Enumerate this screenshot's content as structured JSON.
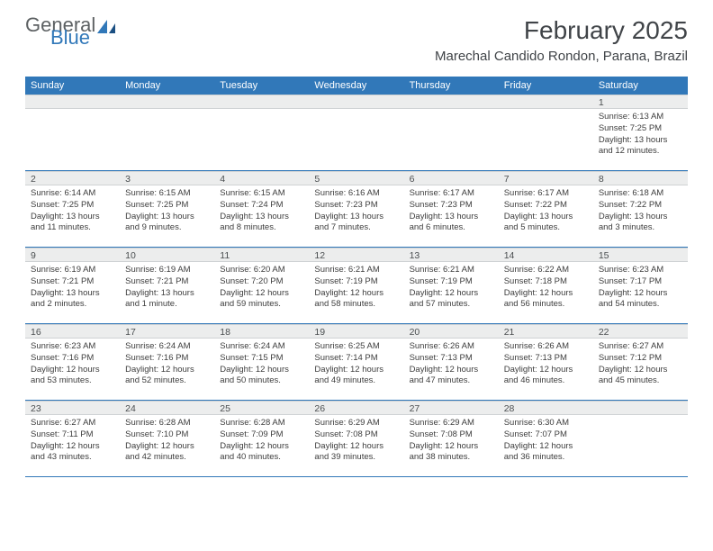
{
  "logo": {
    "general": "General",
    "blue": "Blue"
  },
  "title": "February 2025",
  "location": "Marechal Candido Rondon, Parana, Brazil",
  "colors": {
    "header_bar": "#3178b9",
    "day_num_bg": "#eceded",
    "text": "#3d3d3d",
    "title_text": "#404448"
  },
  "day_headers": [
    "Sunday",
    "Monday",
    "Tuesday",
    "Wednesday",
    "Thursday",
    "Friday",
    "Saturday"
  ],
  "weeks": [
    [
      {
        "n": "",
        "empty": true
      },
      {
        "n": "",
        "empty": true
      },
      {
        "n": "",
        "empty": true
      },
      {
        "n": "",
        "empty": true
      },
      {
        "n": "",
        "empty": true
      },
      {
        "n": "",
        "empty": true
      },
      {
        "n": "1",
        "sunrise": "Sunrise: 6:13 AM",
        "sunset": "Sunset: 7:25 PM",
        "daylight": "Daylight: 13 hours and 12 minutes."
      }
    ],
    [
      {
        "n": "2",
        "sunrise": "Sunrise: 6:14 AM",
        "sunset": "Sunset: 7:25 PM",
        "daylight": "Daylight: 13 hours and 11 minutes."
      },
      {
        "n": "3",
        "sunrise": "Sunrise: 6:15 AM",
        "sunset": "Sunset: 7:25 PM",
        "daylight": "Daylight: 13 hours and 9 minutes."
      },
      {
        "n": "4",
        "sunrise": "Sunrise: 6:15 AM",
        "sunset": "Sunset: 7:24 PM",
        "daylight": "Daylight: 13 hours and 8 minutes."
      },
      {
        "n": "5",
        "sunrise": "Sunrise: 6:16 AM",
        "sunset": "Sunset: 7:23 PM",
        "daylight": "Daylight: 13 hours and 7 minutes."
      },
      {
        "n": "6",
        "sunrise": "Sunrise: 6:17 AM",
        "sunset": "Sunset: 7:23 PM",
        "daylight": "Daylight: 13 hours and 6 minutes."
      },
      {
        "n": "7",
        "sunrise": "Sunrise: 6:17 AM",
        "sunset": "Sunset: 7:22 PM",
        "daylight": "Daylight: 13 hours and 5 minutes."
      },
      {
        "n": "8",
        "sunrise": "Sunrise: 6:18 AM",
        "sunset": "Sunset: 7:22 PM",
        "daylight": "Daylight: 13 hours and 3 minutes."
      }
    ],
    [
      {
        "n": "9",
        "sunrise": "Sunrise: 6:19 AM",
        "sunset": "Sunset: 7:21 PM",
        "daylight": "Daylight: 13 hours and 2 minutes."
      },
      {
        "n": "10",
        "sunrise": "Sunrise: 6:19 AM",
        "sunset": "Sunset: 7:21 PM",
        "daylight": "Daylight: 13 hours and 1 minute."
      },
      {
        "n": "11",
        "sunrise": "Sunrise: 6:20 AM",
        "sunset": "Sunset: 7:20 PM",
        "daylight": "Daylight: 12 hours and 59 minutes."
      },
      {
        "n": "12",
        "sunrise": "Sunrise: 6:21 AM",
        "sunset": "Sunset: 7:19 PM",
        "daylight": "Daylight: 12 hours and 58 minutes."
      },
      {
        "n": "13",
        "sunrise": "Sunrise: 6:21 AM",
        "sunset": "Sunset: 7:19 PM",
        "daylight": "Daylight: 12 hours and 57 minutes."
      },
      {
        "n": "14",
        "sunrise": "Sunrise: 6:22 AM",
        "sunset": "Sunset: 7:18 PM",
        "daylight": "Daylight: 12 hours and 56 minutes."
      },
      {
        "n": "15",
        "sunrise": "Sunrise: 6:23 AM",
        "sunset": "Sunset: 7:17 PM",
        "daylight": "Daylight: 12 hours and 54 minutes."
      }
    ],
    [
      {
        "n": "16",
        "sunrise": "Sunrise: 6:23 AM",
        "sunset": "Sunset: 7:16 PM",
        "daylight": "Daylight: 12 hours and 53 minutes."
      },
      {
        "n": "17",
        "sunrise": "Sunrise: 6:24 AM",
        "sunset": "Sunset: 7:16 PM",
        "daylight": "Daylight: 12 hours and 52 minutes."
      },
      {
        "n": "18",
        "sunrise": "Sunrise: 6:24 AM",
        "sunset": "Sunset: 7:15 PM",
        "daylight": "Daylight: 12 hours and 50 minutes."
      },
      {
        "n": "19",
        "sunrise": "Sunrise: 6:25 AM",
        "sunset": "Sunset: 7:14 PM",
        "daylight": "Daylight: 12 hours and 49 minutes."
      },
      {
        "n": "20",
        "sunrise": "Sunrise: 6:26 AM",
        "sunset": "Sunset: 7:13 PM",
        "daylight": "Daylight: 12 hours and 47 minutes."
      },
      {
        "n": "21",
        "sunrise": "Sunrise: 6:26 AM",
        "sunset": "Sunset: 7:13 PM",
        "daylight": "Daylight: 12 hours and 46 minutes."
      },
      {
        "n": "22",
        "sunrise": "Sunrise: 6:27 AM",
        "sunset": "Sunset: 7:12 PM",
        "daylight": "Daylight: 12 hours and 45 minutes."
      }
    ],
    [
      {
        "n": "23",
        "sunrise": "Sunrise: 6:27 AM",
        "sunset": "Sunset: 7:11 PM",
        "daylight": "Daylight: 12 hours and 43 minutes."
      },
      {
        "n": "24",
        "sunrise": "Sunrise: 6:28 AM",
        "sunset": "Sunset: 7:10 PM",
        "daylight": "Daylight: 12 hours and 42 minutes."
      },
      {
        "n": "25",
        "sunrise": "Sunrise: 6:28 AM",
        "sunset": "Sunset: 7:09 PM",
        "daylight": "Daylight: 12 hours and 40 minutes."
      },
      {
        "n": "26",
        "sunrise": "Sunrise: 6:29 AM",
        "sunset": "Sunset: 7:08 PM",
        "daylight": "Daylight: 12 hours and 39 minutes."
      },
      {
        "n": "27",
        "sunrise": "Sunrise: 6:29 AM",
        "sunset": "Sunset: 7:08 PM",
        "daylight": "Daylight: 12 hours and 38 minutes."
      },
      {
        "n": "28",
        "sunrise": "Sunrise: 6:30 AM",
        "sunset": "Sunset: 7:07 PM",
        "daylight": "Daylight: 12 hours and 36 minutes."
      },
      {
        "n": "",
        "empty": true
      }
    ]
  ]
}
